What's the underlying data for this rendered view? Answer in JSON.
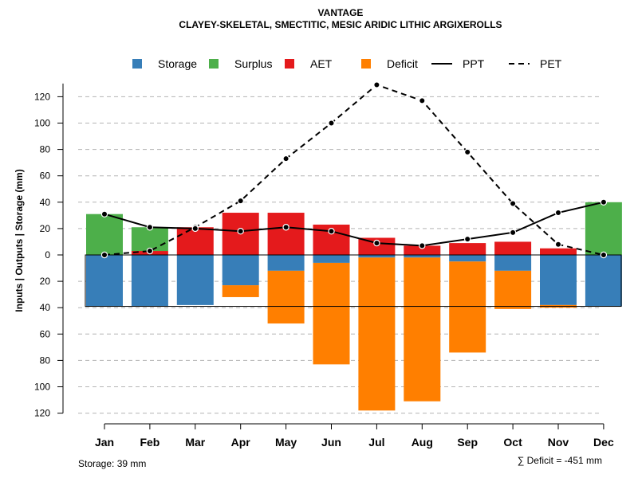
{
  "chart_data": {
    "type": "bar",
    "title": "VANTAGE",
    "subtitle": "CLAYEY-SKELETAL, SMECTITIC, MESIC ARIDIC LITHIC ARGIXEROLLS",
    "ylabel": "Inputs | Outputs | Storage    (mm)",
    "xlabel": "",
    "categories": [
      "Jan",
      "Feb",
      "Mar",
      "Apr",
      "May",
      "Jun",
      "Jul",
      "Aug",
      "Sep",
      "Oct",
      "Nov",
      "Dec"
    ],
    "yticks": [
      {
        "label": "120",
        "value": 120
      },
      {
        "label": "100",
        "value": 100
      },
      {
        "label": "80",
        "value": 80
      },
      {
        "label": "60",
        "value": 60
      },
      {
        "label": "40",
        "value": 40
      },
      {
        "label": "20",
        "value": 20
      },
      {
        "label": "0",
        "value": 0
      },
      {
        "label": "20",
        "value": -20
      },
      {
        "label": "40",
        "value": -40
      },
      {
        "label": "60",
        "value": -60
      },
      {
        "label": "80",
        "value": -80
      },
      {
        "label": "100",
        "value": -100
      },
      {
        "label": "120",
        "value": -120
      }
    ],
    "ylim": [
      -120,
      130
    ],
    "grid": true,
    "legend_position": "top",
    "legend": [
      {
        "key": "storage",
        "label": "Storage",
        "kind": "box",
        "color": "#377EB8"
      },
      {
        "key": "surplus",
        "label": "Surplus",
        "kind": "box",
        "color": "#4DAF4A"
      },
      {
        "key": "aet",
        "label": "AET",
        "kind": "box",
        "color": "#E41A1C"
      },
      {
        "key": "deficit",
        "label": "Deficit",
        "kind": "box",
        "color": "#FF7F00"
      },
      {
        "key": "ppt",
        "label": "PPT",
        "kind": "solid-line",
        "color": "#000000"
      },
      {
        "key": "pet",
        "label": "PET",
        "kind": "dashed-line",
        "color": "#000000"
      }
    ],
    "series": [
      {
        "name": "AET",
        "values": [
          0,
          3,
          21,
          32,
          32,
          23,
          13,
          7,
          9,
          10,
          5,
          0
        ]
      },
      {
        "name": "Surplus",
        "values": [
          31,
          18,
          0,
          0,
          0,
          0,
          0,
          0,
          0,
          0,
          0,
          40
        ]
      },
      {
        "name": "Storage",
        "values": [
          39,
          39,
          38,
          23,
          12,
          6,
          2,
          2,
          5,
          12,
          38,
          39
        ]
      },
      {
        "name": "Deficit",
        "values": [
          0,
          0,
          0,
          9,
          40,
          77,
          116,
          109,
          69,
          29,
          2,
          0
        ]
      },
      {
        "name": "PPT",
        "values": [
          31,
          21,
          20,
          18,
          21,
          18,
          9,
          7,
          12,
          17,
          32,
          40
        ]
      },
      {
        "name": "PET",
        "values": [
          0,
          3,
          21,
          41,
          73,
          100,
          129,
          117,
          78,
          39,
          8,
          0
        ]
      }
    ],
    "storage_capacity": 39,
    "footer_storage": "Storage: 39 mm",
    "footer_deficit": "∑ Deficit = -451 mm"
  }
}
